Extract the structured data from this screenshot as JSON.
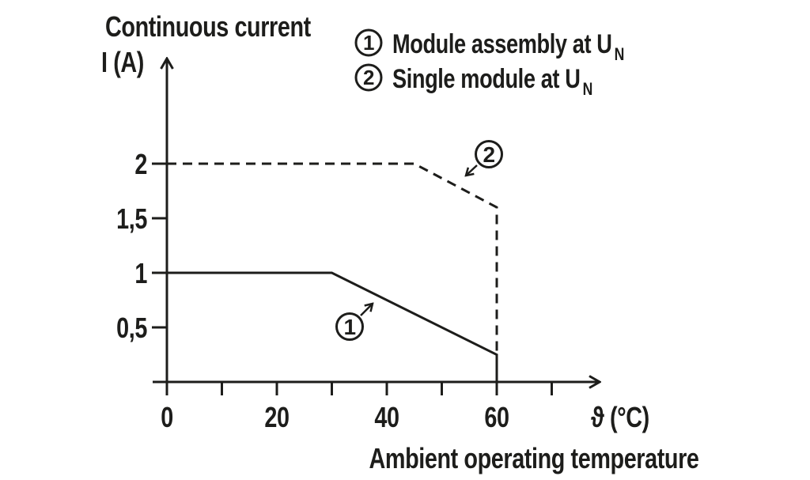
{
  "title_line1": "Continuous current",
  "title_line2": "I (A)",
  "legend": [
    {
      "num": "1",
      "text": "Module assembly at U",
      "sub": "N"
    },
    {
      "num": "2",
      "text": "Single module at U",
      "sub": "N"
    }
  ],
  "x_axis": {
    "symbol_label": "ϑ (°C)",
    "caption": "Ambient operating temperature",
    "ticks": [
      {
        "v": 0,
        "label": "0"
      },
      {
        "v": 10,
        "label": ""
      },
      {
        "v": 20,
        "label": "20"
      },
      {
        "v": 30,
        "label": ""
      },
      {
        "v": 40,
        "label": "40"
      },
      {
        "v": 50,
        "label": ""
      },
      {
        "v": 60,
        "label": "60"
      },
      {
        "v": 70,
        "label": ""
      }
    ]
  },
  "y_axis": {
    "ticks": [
      {
        "v": 0.5,
        "label": "0,5"
      },
      {
        "v": 1,
        "label": "1"
      },
      {
        "v": 1.5,
        "label": "1,5"
      },
      {
        "v": 2,
        "label": "2"
      }
    ]
  },
  "annotations": [
    {
      "label": "1"
    },
    {
      "label": "2"
    }
  ],
  "colors": {
    "ink": "#1d1d1b",
    "background": "#ffffff"
  },
  "chart_data": {
    "type": "line",
    "title": "Derating: continuous current vs ambient operating temperature",
    "xlabel": "ϑ (°C) — Ambient operating temperature",
    "ylabel": "Continuous current I (A)",
    "xlim": [
      0,
      79
    ],
    "ylim": [
      0,
      3
    ],
    "grid": false,
    "legend_position": "top-right",
    "series": [
      {
        "name": "1 — Module assembly at UN",
        "style": "solid",
        "points": [
          [
            0,
            1
          ],
          [
            30,
            1
          ],
          [
            60,
            0.25
          ],
          [
            60,
            0
          ]
        ]
      },
      {
        "name": "2 — Single module at UN",
        "style": "dashed",
        "points": [
          [
            0,
            2
          ],
          [
            45,
            2
          ],
          [
            60,
            1.6
          ],
          [
            60,
            0.25
          ]
        ]
      }
    ]
  }
}
